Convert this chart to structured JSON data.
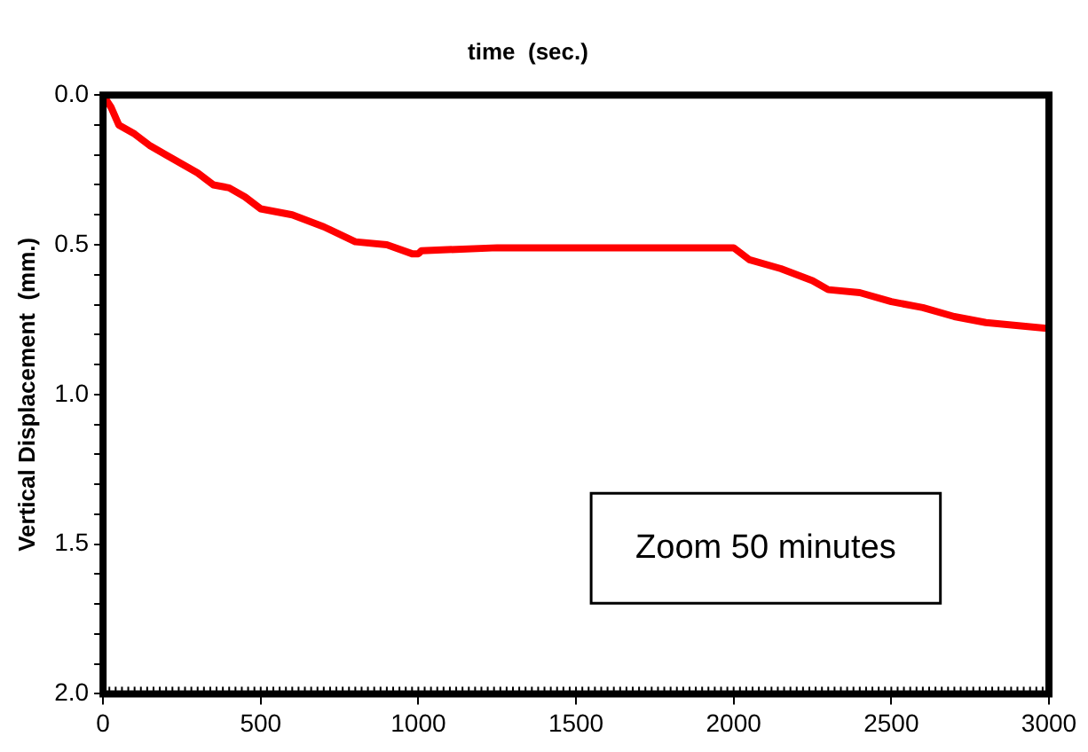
{
  "chart_data": {
    "type": "line",
    "xlabel": "time  (sec.)",
    "ylabel": "Vertical Displacement  (mm.)",
    "x": [
      0,
      25,
      50,
      100,
      150,
      200,
      300,
      350,
      400,
      450,
      500,
      600,
      700,
      800,
      900,
      980,
      1000,
      1010,
      1250,
      2000,
      2050,
      2150,
      2250,
      2300,
      2400,
      2500,
      2600,
      2700,
      2800,
      3000
    ],
    "series": [
      {
        "color": "#ff0000",
        "values": [
          0,
          0.04,
          0.1,
          0.13,
          0.17,
          0.2,
          0.26,
          0.3,
          0.31,
          0.34,
          0.38,
          0.4,
          0.44,
          0.49,
          0.5,
          0.53,
          0.53,
          0.52,
          0.51,
          0.51,
          0.55,
          0.58,
          0.62,
          0.65,
          0.66,
          0.69,
          0.71,
          0.74,
          0.76,
          0.78
        ]
      }
    ],
    "xlim": [
      0,
      3000
    ],
    "xticks": [
      0,
      500,
      1000,
      1500,
      2000,
      2500,
      3000
    ],
    "ylim": [
      2.0,
      0.0
    ],
    "yticks": [
      {
        "value": 0,
        "label": "0.0"
      },
      {
        "value": 0.1,
        "label": null
      },
      {
        "value": 0.2,
        "label": null
      },
      {
        "value": 0.3,
        "label": null
      },
      {
        "value": 0.4,
        "label": null
      },
      {
        "value": 0.5,
        "label": "0.5"
      },
      {
        "value": 0.6,
        "label": null
      },
      {
        "value": 0.7,
        "label": null
      },
      {
        "value": 0.8,
        "label": null
      },
      {
        "value": 0.9,
        "label": null
      },
      {
        "value": 1.0,
        "label": "1.0"
      },
      {
        "value": 1.1,
        "label": null
      },
      {
        "value": 1.2,
        "label": null
      },
      {
        "value": 1.3,
        "label": null
      },
      {
        "value": 1.4,
        "label": null
      },
      {
        "value": 1.5,
        "label": "1.5"
      },
      {
        "value": 1.6,
        "label": null
      },
      {
        "value": 1.7,
        "label": null
      },
      {
        "value": 1.8,
        "label": null
      },
      {
        "value": 1.9,
        "label": null
      },
      {
        "value": 2.0,
        "label": "2.0"
      }
    ],
    "annotations": [
      "Zoom 50 minutes"
    ],
    "grid": false,
    "legend": false,
    "marker": "none",
    "line_style": "solid"
  }
}
